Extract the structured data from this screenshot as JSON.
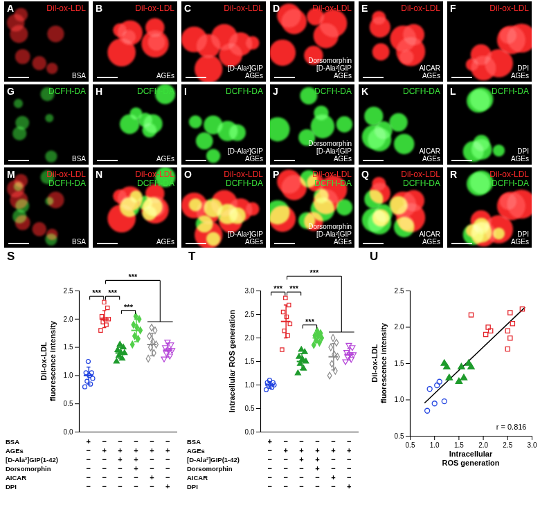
{
  "image_panels": {
    "stain_colors": {
      "Dil-ox-LDL": "#ff2a2a",
      "DCFH-DA": "#3ae03a"
    },
    "panels": [
      {
        "letter": "A",
        "stains": [
          "Dil-ox-LDL"
        ],
        "treatment": [
          "BSA"
        ]
      },
      {
        "letter": "B",
        "stains": [
          "Dil-ox-LDL"
        ],
        "treatment": [
          "AGEs"
        ]
      },
      {
        "letter": "C",
        "stains": [
          "Dil-ox-LDL"
        ],
        "treatment": [
          "[D-Ala²]GIP",
          "AGEs"
        ]
      },
      {
        "letter": "D",
        "stains": [
          "Dil-ox-LDL"
        ],
        "treatment": [
          "Dorsomorphin",
          "[D-Ala²]GIP",
          "AGEs"
        ]
      },
      {
        "letter": "E",
        "stains": [
          "Dil-ox-LDL"
        ],
        "treatment": [
          "AICAR",
          "AGEs"
        ]
      },
      {
        "letter": "F",
        "stains": [
          "Dil-ox-LDL"
        ],
        "treatment": [
          "DPI",
          "AGEs"
        ]
      },
      {
        "letter": "G",
        "stains": [
          "DCFH-DA"
        ],
        "treatment": [
          "BSA"
        ]
      },
      {
        "letter": "H",
        "stains": [
          "DCFH-DA"
        ],
        "treatment": [
          "AGEs"
        ]
      },
      {
        "letter": "I",
        "stains": [
          "DCFH-DA"
        ],
        "treatment": [
          "[D-Ala²]GIP",
          "AGEs"
        ]
      },
      {
        "letter": "J",
        "stains": [
          "DCFH-DA"
        ],
        "treatment": [
          "Dorsomorphin",
          "[D-Ala²]GIP",
          "AGEs"
        ]
      },
      {
        "letter": "K",
        "stains": [
          "DCFH-DA"
        ],
        "treatment": [
          "AICAR",
          "AGEs"
        ]
      },
      {
        "letter": "L",
        "stains": [
          "DCFH-DA"
        ],
        "treatment": [
          "DPI",
          "AGEs"
        ]
      },
      {
        "letter": "M",
        "stains": [
          "Dil-ox-LDL",
          "DCFH-DA"
        ],
        "treatment": [
          "BSA"
        ]
      },
      {
        "letter": "N",
        "stains": [
          "Dil-ox-LDL",
          "DCFH-DA"
        ],
        "treatment": [
          "AGEs"
        ]
      },
      {
        "letter": "O",
        "stains": [
          "Dil-ox-LDL",
          "DCFH-DA"
        ],
        "treatment": [
          "[D-Ala²]GIP",
          "AGEs"
        ]
      },
      {
        "letter": "P",
        "stains": [
          "Dil-ox-LDL",
          "DCFH-DA"
        ],
        "treatment": [
          "Dorsomorphin",
          "[D-Ala²]GIP",
          "AGEs"
        ]
      },
      {
        "letter": "Q",
        "stains": [
          "Dil-ox-LDL",
          "DCFH-DA"
        ],
        "treatment": [
          "AICAR",
          "AGEs"
        ]
      },
      {
        "letter": "R",
        "stains": [
          "Dil-ox-LDL",
          "DCFH-DA"
        ],
        "treatment": [
          "DPI",
          "AGEs"
        ]
      }
    ]
  },
  "chart_data": [
    {
      "panel": "S",
      "type": "dotplot",
      "ylabel": "Dil-ox-LDL fluorescence intensity",
      "categories": [
        null,
        null,
        null,
        null,
        null,
        null
      ],
      "values": [
        1.0,
        2.0,
        1.4,
        1.8,
        1.55,
        1.45
      ],
      "errors": [
        0.15,
        0.15,
        0.1,
        0.2,
        0.2,
        0.12
      ],
      "points": [
        [
          0.8,
          0.85,
          0.9,
          0.95,
          1.0,
          1.05,
          1.05,
          1.25
        ],
        [
          1.8,
          1.9,
          1.95,
          2.0,
          2.0,
          2.05,
          2.2,
          2.3
        ],
        [
          1.25,
          1.3,
          1.35,
          1.4,
          1.4,
          1.45,
          1.5,
          1.55
        ],
        [
          1.55,
          1.65,
          1.7,
          1.8,
          1.85,
          1.9,
          2.0,
          2.05
        ],
        [
          1.3,
          1.4,
          1.5,
          1.55,
          1.6,
          1.7,
          1.8,
          1.85
        ],
        [
          1.3,
          1.35,
          1.4,
          1.45,
          1.45,
          1.5,
          1.55,
          1.6
        ]
      ],
      "colors": [
        "#2143e0",
        "#e4252b",
        "#1e9b2c",
        "#52d04a",
        "#8c8c8c",
        "#b545d8"
      ],
      "markers": [
        "circle-open",
        "square-open",
        "triangle",
        "diamond",
        "diamond-open",
        "triangle-down-open"
      ],
      "ylim": [
        0,
        2.5
      ],
      "yticks": [
        {
          "value": 0,
          "label": "0.0"
        },
        0.5,
        {
          "value": 1,
          "label": "1.0"
        },
        1.5,
        {
          "value": 2,
          "label": "2.0"
        },
        2.5
      ],
      "annotations": [
        {
          "groups": [
            0,
            1
          ],
          "label": "***"
        },
        {
          "groups": [
            1,
            2
          ],
          "label": "***"
        },
        {
          "groups": [
            2,
            3
          ],
          "label": "***"
        },
        {
          "groups": [
            1,
            [
              4,
              5
            ]
          ],
          "label": "***"
        }
      ],
      "conditions": [
        {
          "name": "BSA",
          "signs": [
            "+",
            "−",
            "−",
            "−",
            "−",
            "−"
          ]
        },
        {
          "name": "AGEs",
          "signs": [
            "−",
            "+",
            "+",
            "+",
            "+",
            "+"
          ]
        },
        {
          "name": "[D-Ala²]GIP(1-42)",
          "signs": [
            "−",
            "−",
            "+",
            "+",
            "−",
            "−"
          ]
        },
        {
          "name": "Dorsomorphin",
          "signs": [
            "−",
            "−",
            "−",
            "+",
            "−",
            "−"
          ]
        },
        {
          "name": "AICAR",
          "signs": [
            "−",
            "−",
            "−",
            "−",
            "+",
            "−"
          ]
        },
        {
          "name": "DPI",
          "signs": [
            "−",
            "−",
            "−",
            "−",
            "−",
            "+"
          ]
        }
      ]
    },
    {
      "panel": "T",
      "type": "dotplot",
      "ylabel": "Intracellular ROS generation",
      "categories": [
        null,
        null,
        null,
        null,
        null,
        null
      ],
      "values": [
        1.0,
        2.35,
        1.5,
        2.0,
        1.6,
        1.65
      ],
      "errors": [
        0.07,
        0.35,
        0.17,
        0.1,
        0.28,
        0.12
      ],
      "points": [
        [
          0.9,
          0.95,
          1.0,
          1.0,
          1.0,
          1.05,
          1.05,
          1.1
        ],
        [
          1.75,
          2.05,
          2.15,
          2.3,
          2.45,
          2.55,
          2.7,
          2.85
        ],
        [
          1.25,
          1.35,
          1.45,
          1.5,
          1.55,
          1.6,
          1.7,
          1.75
        ],
        [
          1.85,
          1.9,
          1.95,
          2.0,
          2.05,
          2.05,
          2.1,
          2.15
        ],
        [
          1.2,
          1.3,
          1.45,
          1.6,
          1.65,
          1.8,
          1.9,
          2.0
        ],
        [
          1.5,
          1.55,
          1.6,
          1.65,
          1.65,
          1.7,
          1.8,
          1.85
        ]
      ],
      "colors": [
        "#2143e0",
        "#e4252b",
        "#1e9b2c",
        "#52d04a",
        "#8c8c8c",
        "#b545d8"
      ],
      "markers": [
        "circle-open",
        "square-open",
        "triangle",
        "diamond",
        "diamond-open",
        "triangle-down-open"
      ],
      "ylim": [
        0,
        3
      ],
      "yticks": [
        {
          "value": 0,
          "label": "0.0"
        },
        0.5,
        {
          "value": 1,
          "label": "1.0"
        },
        1.5,
        {
          "value": 2,
          "label": "2.0"
        },
        2.5,
        {
          "value": 3,
          "label": "3.0"
        }
      ],
      "annotations": [
        {
          "groups": [
            0,
            1
          ],
          "label": "***"
        },
        {
          "groups": [
            1,
            2
          ],
          "label": "***"
        },
        {
          "groups": [
            2,
            3
          ],
          "label": "***"
        },
        {
          "groups": [
            1,
            [
              4,
              5
            ]
          ],
          "label": "***"
        }
      ],
      "conditions": [
        {
          "name": "BSA",
          "signs": [
            "+",
            "−",
            "−",
            "−",
            "−",
            "−"
          ]
        },
        {
          "name": "AGEs",
          "signs": [
            "−",
            "+",
            "+",
            "+",
            "+",
            "+"
          ]
        },
        {
          "name": "[D-Ala²]GIP(1-42)",
          "signs": [
            "−",
            "−",
            "+",
            "+",
            "−",
            "−"
          ]
        },
        {
          "name": "Dorsomorphin",
          "signs": [
            "−",
            "−",
            "−",
            "+",
            "−",
            "−"
          ]
        },
        {
          "name": "AICAR",
          "signs": [
            "−",
            "−",
            "−",
            "−",
            "+",
            "−"
          ]
        },
        {
          "name": "DPI",
          "signs": [
            "−",
            "−",
            "−",
            "−",
            "−",
            "+"
          ]
        }
      ]
    },
    {
      "panel": "U",
      "type": "scatter",
      "xlabel": "Intracellular ROS generation",
      "ylabel": "Dil-ox-LDL fluorescence intensity",
      "xlim": [
        0.5,
        3
      ],
      "xticks": [
        0.5,
        {
          "value": 1,
          "label": "1.0"
        },
        1.5,
        {
          "value": 2,
          "label": "2.0"
        },
        2.5,
        {
          "value": 3,
          "label": "3.0"
        }
      ],
      "ylim": [
        0.5,
        2.5
      ],
      "yticks": [
        0.5,
        {
          "value": 1,
          "label": "1.0"
        },
        1.5,
        {
          "value": 2,
          "label": "2.0"
        },
        2.5
      ],
      "series": [
        {
          "color": "#2143e0",
          "marker": "circle-open",
          "x": [
            0.85,
            0.9,
            1.0,
            1.05,
            1.1,
            1.2
          ],
          "y": [
            0.85,
            1.15,
            0.95,
            1.2,
            1.25,
            0.98
          ]
        },
        {
          "color": "#1e9b2c",
          "marker": "triangle",
          "x": [
            1.2,
            1.25,
            1.3,
            1.5,
            1.55,
            1.6,
            1.7,
            1.75
          ],
          "y": [
            1.5,
            1.45,
            1.3,
            1.25,
            1.45,
            1.3,
            1.5,
            1.45
          ]
        },
        {
          "color": "#e4252b",
          "marker": "square-open",
          "x": [
            1.75,
            2.05,
            2.1,
            2.15,
            2.5,
            2.5,
            2.55,
            2.6,
            2.8,
            2.55
          ],
          "y": [
            2.17,
            1.9,
            2.0,
            1.95,
            1.7,
            1.95,
            2.2,
            2.05,
            2.25,
            1.85
          ]
        }
      ],
      "fit_line": {
        "x": [
          0.8,
          2.85
        ],
        "y": [
          0.96,
          2.27
        ]
      },
      "annotations": [
        {
          "text": "r = 0.816"
        }
      ]
    }
  ]
}
